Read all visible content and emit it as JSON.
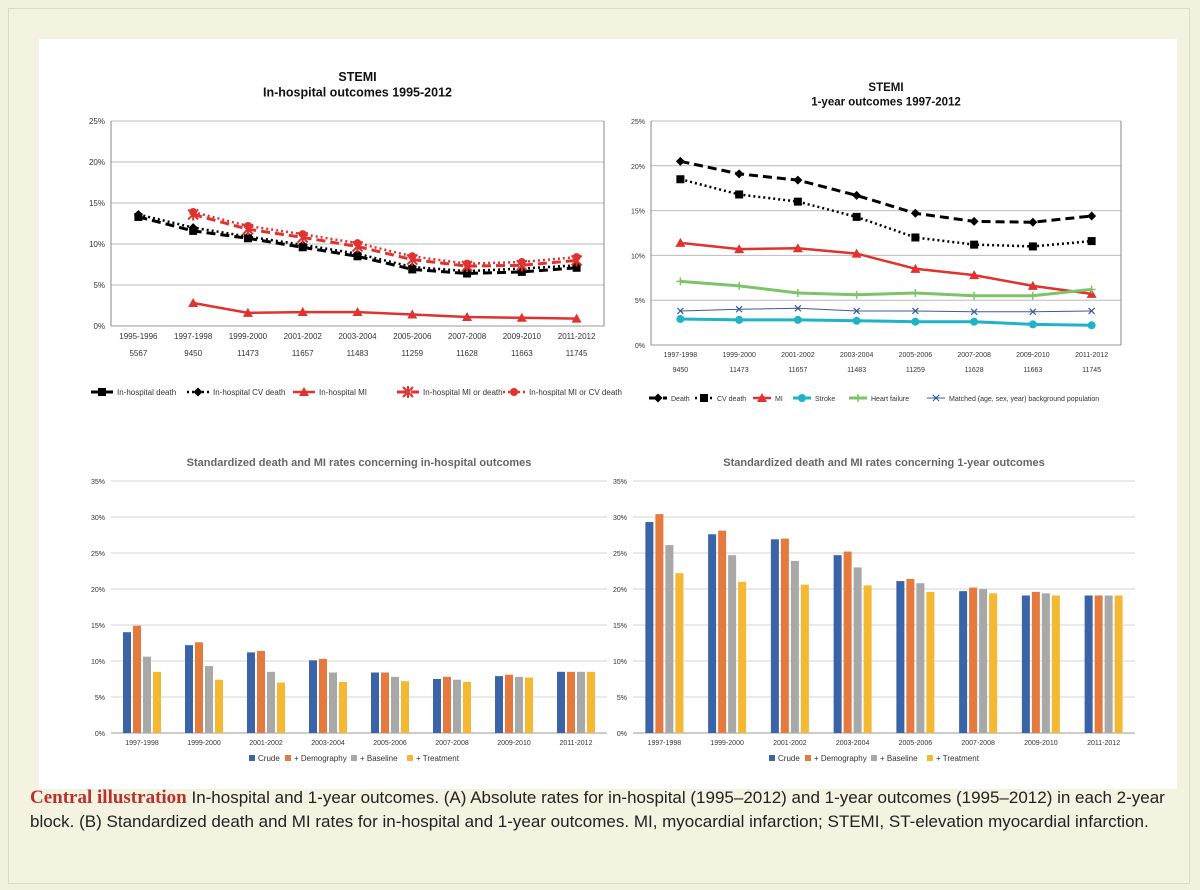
{
  "colors": {
    "black": "#000000",
    "red": "#e0322e",
    "cyan": "#1fb3c8",
    "green": "#7dc468",
    "navy": "#3b5b98",
    "crude": "#3a63a8",
    "demo": "#e57a3e",
    "base": "#a8a8a8",
    "treat": "#f5b833"
  },
  "caption": {
    "bold": "Central illustration",
    "text": " In-hospital and 1-year outcomes. (A) Absolute rates for in-hospital (1995–2012) and 1-year outcomes (1995–2012) in each 2-year block. (B) Standardized death and MI rates for in-hospital and 1-year outcomes. MI, myocardial infarction; STEMI, ST-elevation myocardial infarction."
  },
  "chart_data": [
    {
      "type": "line",
      "title": "STEMI",
      "subtitle": "In-hospital outcomes 1995-2012",
      "categories": [
        "1995-1996",
        "1997-1998",
        "1999-2000",
        "2001-2002",
        "2003-2004",
        "2005-2006",
        "2007-2008",
        "2009-2010",
        "2011-2012"
      ],
      "counts": [
        "5567",
        "9450",
        "11473",
        "11657",
        "11483",
        "11259",
        "11628",
        "11663",
        "11745"
      ],
      "yticks": [
        "0%",
        "5%",
        "10%",
        "15%",
        "20%",
        "25%"
      ],
      "ylim": [
        0,
        25
      ],
      "series": [
        {
          "name": "In-hospital death",
          "values": [
            13.3,
            11.6,
            10.7,
            9.6,
            8.5,
            6.9,
            6.4,
            6.6,
            7.1
          ]
        },
        {
          "name": "In-hospital CV death",
          "values": [
            13.6,
            12.0,
            10.9,
            9.9,
            8.8,
            7.2,
            6.7,
            7.0,
            7.4
          ]
        },
        {
          "name": "In-hospital MI",
          "values": [
            null,
            2.8,
            1.6,
            1.7,
            1.7,
            1.4,
            1.1,
            1.0,
            0.9
          ]
        },
        {
          "name": "In-hospital MI or death",
          "values": [
            null,
            13.6,
            11.8,
            10.8,
            9.7,
            8.1,
            7.3,
            7.4,
            8.0
          ]
        },
        {
          "name": "In-hospital MI or CV death",
          "values": [
            null,
            13.9,
            12.2,
            11.2,
            10.1,
            8.5,
            7.6,
            7.8,
            8.4
          ]
        }
      ]
    },
    {
      "type": "line",
      "title": "STEMI",
      "subtitle": "1-year outcomes 1997-2012",
      "categories": [
        "1997-1998",
        "1999-2000",
        "2001-2002",
        "2003-2004",
        "2005-2006",
        "2007-2008",
        "2009-2010",
        "2011-2012"
      ],
      "counts": [
        "9450",
        "11473",
        "11657",
        "11483",
        "11259",
        "11628",
        "11663",
        "11745"
      ],
      "yticks": [
        "0%",
        "5%",
        "10%",
        "15%",
        "20%",
        "25%"
      ],
      "ylim": [
        0,
        25
      ],
      "series": [
        {
          "name": "Death",
          "values": [
            20.5,
            19.1,
            18.4,
            16.7,
            14.7,
            13.8,
            13.7,
            14.4
          ]
        },
        {
          "name": "CV death",
          "values": [
            18.5,
            16.8,
            16.0,
            14.3,
            12.0,
            11.2,
            11.0,
            11.6
          ]
        },
        {
          "name": "MI",
          "values": [
            11.4,
            10.7,
            10.8,
            10.2,
            8.5,
            7.8,
            6.6,
            5.7
          ]
        },
        {
          "name": "Stroke",
          "values": [
            2.9,
            2.8,
            2.8,
            2.7,
            2.6,
            2.6,
            2.3,
            2.2
          ]
        },
        {
          "name": "Heart failure",
          "values": [
            7.1,
            6.6,
            5.8,
            5.6,
            5.8,
            5.5,
            5.5,
            6.2
          ]
        },
        {
          "name": "Matched (age, sex, year) background population",
          "values": [
            3.8,
            4.0,
            4.1,
            3.8,
            3.8,
            3.7,
            3.7,
            3.8
          ]
        }
      ]
    },
    {
      "type": "bar",
      "title": "Standardized death and MI rates concerning in-hospital outcomes",
      "categories": [
        "1997-1998",
        "1999-2000",
        "2001-2002",
        "2003-2004",
        "2005-2006",
        "2007-2008",
        "2009-2010",
        "2011-2012"
      ],
      "yticks": [
        "0%",
        "5%",
        "10%",
        "15%",
        "20%",
        "25%",
        "30%",
        "35%"
      ],
      "ylim": [
        0,
        35
      ],
      "series": [
        {
          "name": "Crude",
          "values": [
            14.0,
            12.2,
            11.2,
            10.1,
            8.4,
            7.5,
            7.9,
            8.5
          ]
        },
        {
          "name": "+ Demography",
          "values": [
            14.9,
            12.6,
            11.4,
            10.3,
            8.4,
            7.8,
            8.1,
            8.5
          ]
        },
        {
          "name": "+ Baseline",
          "values": [
            10.6,
            9.3,
            8.5,
            8.4,
            7.8,
            7.4,
            7.8,
            8.5
          ]
        },
        {
          "name": "+ Treatment",
          "values": [
            8.5,
            7.4,
            7.0,
            7.1,
            7.2,
            7.1,
            7.7,
            8.5
          ]
        }
      ]
    },
    {
      "type": "bar",
      "title": "Standardized death and MI rates concerning 1-year outcomes",
      "categories": [
        "1997-1998",
        "1999-2000",
        "2001-2002",
        "2003-2004",
        "2005-2006",
        "2007-2008",
        "2009-2010",
        "2011-2012"
      ],
      "yticks": [
        "0%",
        "5%",
        "10%",
        "15%",
        "20%",
        "25%",
        "30%",
        "35%"
      ],
      "ylim": [
        0,
        35
      ],
      "series": [
        {
          "name": "Crude",
          "values": [
            29.3,
            27.6,
            26.9,
            24.7,
            21.1,
            19.7,
            19.1,
            19.1
          ]
        },
        {
          "name": "+ Demography",
          "values": [
            30.4,
            28.1,
            27.0,
            25.2,
            21.4,
            20.2,
            19.6,
            19.1
          ]
        },
        {
          "name": "+ Baseline",
          "values": [
            26.1,
            24.7,
            23.9,
            23.0,
            20.8,
            20.0,
            19.4,
            19.1
          ]
        },
        {
          "name": "+ Treatment",
          "values": [
            22.2,
            21.0,
            20.6,
            20.5,
            19.6,
            19.4,
            19.1,
            19.1
          ]
        }
      ]
    }
  ]
}
